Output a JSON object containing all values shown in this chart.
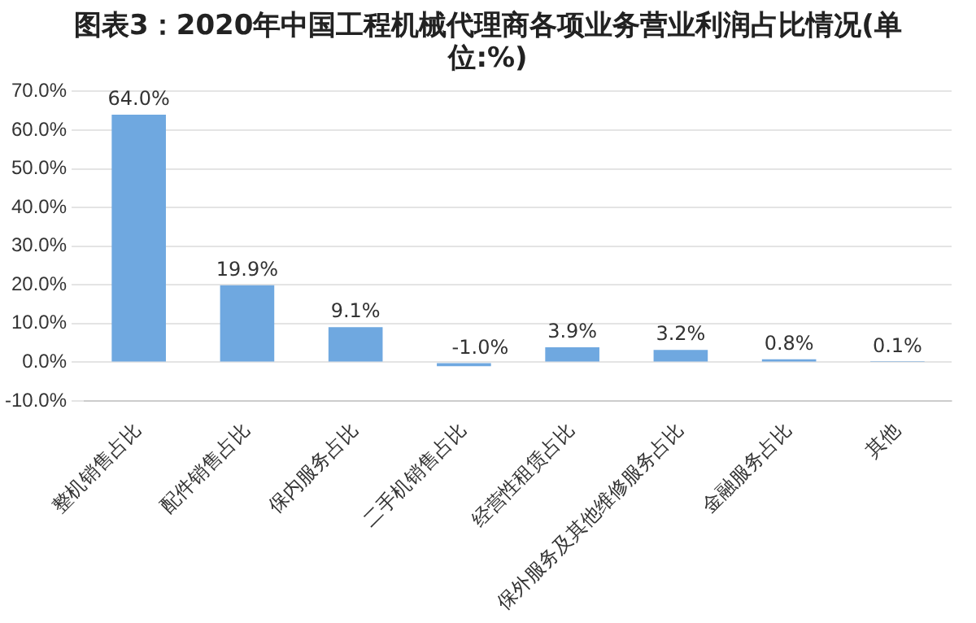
{
  "chart_data": {
    "type": "bar",
    "title": "图表3：2020年中国工程机械代理商各项业务营业利润占比情况(单位:%)",
    "categories": [
      "整机销售占比",
      "配件销售占比",
      "保内服务占比",
      "二手机销售占比",
      "经营性租赁占比",
      "保外服务及其他维修服务占比",
      "金融服务占比",
      "其他"
    ],
    "values": [
      64.0,
      19.9,
      9.1,
      -1.0,
      3.9,
      3.2,
      0.8,
      0.1
    ],
    "value_labels": [
      "64.0%",
      "19.9%",
      "9.1%",
      "-1.0%",
      "3.9%",
      "3.2%",
      "0.8%",
      "0.1%"
    ],
    "color": "#6fa8e0",
    "ylim": [
      -10,
      70
    ],
    "yticks": [
      {
        "value": -10,
        "label": "-10.0%"
      },
      {
        "value": 0,
        "label": "0.0%"
      },
      {
        "value": 10,
        "label": "10.0%"
      },
      {
        "value": 20,
        "label": "20.0%"
      },
      {
        "value": 30,
        "label": "30.0%"
      },
      {
        "value": 40,
        "label": "40.0%"
      },
      {
        "value": 50,
        "label": "50.0%"
      },
      {
        "value": 60,
        "label": "60.0%"
      },
      {
        "value": 70,
        "label": "70.0%"
      }
    ],
    "grid": "y",
    "legend": false
  }
}
